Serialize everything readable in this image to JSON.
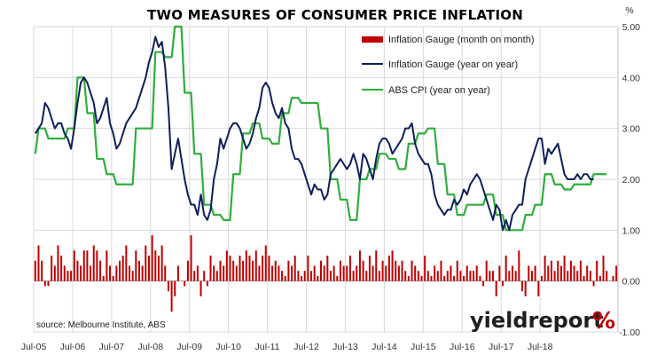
{
  "chart_data": {
    "type": "bar+line",
    "title": "TWO MEASURES OF CONSUMER PRICE INFLATION",
    "y_unit": "%",
    "ylim": [
      -1.0,
      5.0
    ],
    "yticks": [
      "5.00",
      "4.00",
      "3.00",
      "2.00",
      "1.00",
      "0.00",
      "-1.00"
    ],
    "ytick_values": [
      5,
      4,
      3,
      2,
      1,
      0,
      -1
    ],
    "xticks": [
      "Jul-05",
      "Jul-06",
      "Jul-07",
      "Jul-08",
      "Jul-09",
      "Jul-10",
      "Jul-11",
      "Jul-12",
      "Jul-13",
      "Jul-14",
      "Jul-15",
      "Jul-16",
      "Jul-17",
      "Jul-18"
    ],
    "x_start": "Jul-05",
    "x_end": "Aug-18",
    "grid": true,
    "legend_position": "top-right",
    "source": "source: Melbourne Institute, ABS",
    "series": [
      {
        "name": "Inflation Gauge (month on month)",
        "kind": "bar",
        "color": "#c00000",
        "values": [
          0.4,
          0.7,
          0.4,
          -0.1,
          -0.1,
          0.5,
          0.3,
          0.7,
          0.5,
          0.3,
          0.2,
          0.2,
          0.6,
          0.4,
          0.3,
          0.6,
          0.6,
          0.3,
          0.7,
          0.6,
          0.4,
          0.1,
          0.6,
          0.3,
          0.1,
          0.3,
          0.4,
          0.5,
          0.7,
          0.3,
          0.2,
          0.6,
          0.4,
          0.3,
          0.7,
          0.5,
          0.9,
          0.6,
          0.5,
          0.7,
          0.3,
          -0.2,
          -0.6,
          -0.3,
          0.3,
          0.0,
          -0.1,
          0.4,
          0.9,
          0.2,
          0.3,
          -0.3,
          0.2,
          -0.1,
          0.5,
          0.3,
          0.2,
          0.4,
          0.3,
          0.6,
          0.5,
          0.4,
          0.3,
          0.5,
          0.4,
          0.6,
          0.5,
          0.4,
          0.6,
          0.3,
          0.5,
          0.7,
          0.5,
          0.3,
          0.4,
          0.3,
          0.2,
          0.1,
          0.4,
          0.3,
          0.5,
          0.2,
          0.1,
          0.2,
          0.5,
          0.2,
          0.3,
          0.1,
          0.4,
          0.3,
          0.5,
          0.2,
          0.3,
          0.1,
          0.4,
          0.3,
          0.3,
          0.5,
          0.2,
          0.3,
          0.6,
          0.4,
          0.2,
          0.5,
          0.3,
          0.6,
          0.2,
          0.4,
          0.3,
          0.5,
          0.6,
          0.4,
          0.3,
          0.4,
          0.2,
          0.1,
          0.4,
          0.3,
          0.2,
          0.1,
          0.5,
          0.2,
          0.1,
          0.3,
          0.2,
          0.4,
          0.1,
          0.2,
          0.3,
          0.1,
          0.4,
          0.2,
          0.1,
          0.3,
          0.2,
          0.2,
          0.3,
          0.1,
          -0.1,
          0.4,
          0.2,
          0.2,
          -0.3,
          0.3,
          -0.1,
          0.5,
          0.2,
          0.3,
          0.2,
          0.6,
          -0.2,
          -0.3,
          0.3,
          0.2,
          0.3,
          -0.3,
          0.1,
          0.5,
          0.3,
          0.4,
          0.2,
          0.4,
          0.3,
          0.5,
          0.2,
          0.4,
          0.3,
          0.2,
          0.4,
          0.1,
          0.3,
          0.2,
          -0.1,
          0.4,
          0.1,
          0.5,
          0.2,
          0.0,
          0.1,
          0.3
        ]
      },
      {
        "name": "Inflation Gauge (year on year)",
        "kind": "line",
        "color": "#0e1f5a",
        "values": [
          2.9,
          3.0,
          3.1,
          3.5,
          3.4,
          3.2,
          3.0,
          3.1,
          3.1,
          2.9,
          2.8,
          2.6,
          3.0,
          3.5,
          3.9,
          4.0,
          3.9,
          3.7,
          3.5,
          3.1,
          3.2,
          3.4,
          3.6,
          3.1,
          2.9,
          2.6,
          2.7,
          2.9,
          3.1,
          3.2,
          3.3,
          3.4,
          3.6,
          3.8,
          4.0,
          4.3,
          4.5,
          4.8,
          4.6,
          4.7,
          4.2,
          3.4,
          2.2,
          2.5,
          2.8,
          2.4,
          2.0,
          1.7,
          1.5,
          1.5,
          1.3,
          1.7,
          1.3,
          1.2,
          1.4,
          2.0,
          2.3,
          2.8,
          2.6,
          2.8,
          3.0,
          3.1,
          3.1,
          3.0,
          2.8,
          2.6,
          2.7,
          2.9,
          3.2,
          3.4,
          3.8,
          3.9,
          3.8,
          3.5,
          3.3,
          3.2,
          3.4,
          3.1,
          3.0,
          2.6,
          2.4,
          2.4,
          2.3,
          2.1,
          1.9,
          1.7,
          1.9,
          1.8,
          1.8,
          1.6,
          1.7,
          2.1,
          2.2,
          2.3,
          2.4,
          2.3,
          2.2,
          2.3,
          2.5,
          2.3,
          2.0,
          2.5,
          2.4,
          2.2,
          2.0,
          2.4,
          2.7,
          2.8,
          2.8,
          2.7,
          2.5,
          2.6,
          2.7,
          2.8,
          3.0,
          3.0,
          3.1,
          2.7,
          2.5,
          2.4,
          2.3,
          2.3,
          2.1,
          1.7,
          1.5,
          1.4,
          1.3,
          1.4,
          1.4,
          1.6,
          1.5,
          1.6,
          1.8,
          1.7,
          1.9,
          2.0,
          2.1,
          2.0,
          1.8,
          1.6,
          1.4,
          1.2,
          1.5,
          1.4,
          1.0,
          1.2,
          1.0,
          1.3,
          1.4,
          1.5,
          1.5,
          2.0,
          2.2,
          2.4,
          2.6,
          2.8,
          2.8,
          2.3,
          2.6,
          2.5,
          2.6,
          2.7,
          2.4,
          2.1,
          2.0,
          2.0,
          2.0,
          2.1,
          2.0,
          2.1,
          2.1,
          2.0,
          2.0
        ]
      },
      {
        "name": "ABS CPI (year on year)",
        "kind": "line",
        "color": "#2fae3b",
        "values": [
          2.5,
          3.0,
          3.0,
          3.0,
          2.8,
          2.8,
          2.8,
          2.8,
          2.8,
          2.8,
          3.0,
          3.0,
          3.0,
          4.0,
          4.0,
          4.0,
          3.3,
          3.3,
          3.3,
          2.4,
          2.4,
          2.4,
          2.1,
          2.1,
          2.1,
          1.9,
          1.9,
          1.9,
          1.9,
          1.9,
          1.9,
          3.0,
          3.0,
          3.0,
          3.0,
          3.0,
          3.0,
          4.5,
          4.5,
          4.5,
          4.4,
          4.4,
          4.4,
          5.0,
          5.0,
          5.0,
          3.7,
          3.7,
          3.7,
          2.5,
          2.5,
          2.5,
          1.5,
          1.5,
          1.5,
          1.3,
          1.3,
          1.3,
          1.2,
          1.2,
          1.2,
          2.1,
          2.1,
          2.1,
          2.9,
          2.9,
          2.9,
          3.1,
          3.1,
          3.1,
          2.8,
          2.8,
          2.8,
          2.7,
          2.7,
          2.7,
          3.3,
          3.3,
          3.3,
          3.6,
          3.6,
          3.6,
          3.5,
          3.5,
          3.5,
          3.5,
          3.5,
          3.5,
          3.0,
          3.0,
          3.0,
          2.0,
          2.0,
          2.0,
          1.6,
          1.6,
          1.6,
          1.2,
          1.2,
          1.2,
          2.0,
          2.0,
          2.0,
          2.2,
          2.2,
          2.2,
          2.5,
          2.5,
          2.5,
          2.4,
          2.4,
          2.4,
          2.2,
          2.2,
          2.2,
          2.7,
          2.7,
          2.7,
          2.9,
          2.9,
          2.9,
          3.0,
          3.0,
          3.0,
          2.3,
          2.3,
          2.3,
          1.7,
          1.7,
          1.7,
          1.3,
          1.3,
          1.3,
          1.5,
          1.5,
          1.5,
          1.5,
          1.5,
          1.5,
          1.7,
          1.7,
          1.7,
          1.3,
          1.3,
          1.3,
          1.0,
          1.0,
          1.0,
          1.0,
          1.0,
          1.0,
          1.3,
          1.3,
          1.3,
          1.5,
          1.5,
          1.5,
          2.1,
          2.1,
          2.1,
          1.9,
          1.9,
          1.9,
          1.8,
          1.8,
          1.8,
          1.9,
          1.9,
          1.9,
          1.9,
          1.9,
          1.9,
          2.1,
          2.1,
          2.1,
          2.1,
          2.1
        ]
      }
    ]
  },
  "branding": {
    "logo_main": "yieldreport",
    "logo_mark": "%"
  }
}
